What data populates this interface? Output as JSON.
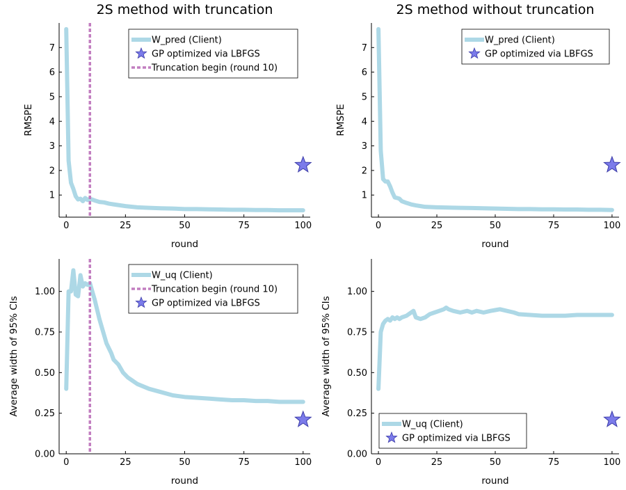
{
  "colors": {
    "client_line": "#add8e6",
    "gp_star_fill": "#7b7bea",
    "gp_star_stroke": "#3c3ca8",
    "truncation": "#c27ec0",
    "axis": "#000000"
  },
  "chart_data": [
    {
      "type": "line",
      "title": "2S method with truncation",
      "xlabel": "round",
      "ylabel": "RMSPE",
      "xlim": [
        -3,
        103
      ],
      "ylim": [
        0.1,
        8.0
      ],
      "xticks": [
        0,
        25,
        50,
        75,
        100
      ],
      "yticks": [
        1,
        2,
        3,
        4,
        5,
        6,
        7
      ],
      "ytick_labels": [
        "1",
        "2",
        "3",
        "4",
        "5",
        "6",
        "7"
      ],
      "grid": false,
      "legend_position": "top-right",
      "legend": [
        "W_pred (Client)",
        "GP optimized via LBFGS",
        "Truncation begin (round 10)"
      ],
      "series": [
        {
          "name": "W_pred (Client)",
          "x": [
            0,
            1,
            2,
            3,
            4,
            5,
            6,
            7,
            8,
            9,
            10,
            12,
            14,
            16,
            18,
            20,
            25,
            30,
            35,
            40,
            45,
            50,
            55,
            60,
            65,
            70,
            75,
            80,
            85,
            90,
            95,
            100
          ],
          "y": [
            7.75,
            2.4,
            1.5,
            1.25,
            0.95,
            0.82,
            0.85,
            0.75,
            0.88,
            0.8,
            0.85,
            0.78,
            0.72,
            0.7,
            0.65,
            0.62,
            0.55,
            0.5,
            0.48,
            0.46,
            0.45,
            0.43,
            0.43,
            0.42,
            0.41,
            0.4,
            0.4,
            0.39,
            0.39,
            0.38,
            0.38,
            0.38
          ]
        }
      ],
      "gp_point": {
        "name": "GP optimized via LBFGS",
        "x": 100,
        "y": 2.22
      },
      "truncation": {
        "name": "Truncation begin (round 10)",
        "x": 10
      }
    },
    {
      "type": "line",
      "title": "2S method without truncation",
      "xlabel": "round",
      "ylabel": "RMSPE",
      "xlim": [
        -3,
        103
      ],
      "ylim": [
        0.1,
        8.0
      ],
      "xticks": [
        0,
        25,
        50,
        75,
        100
      ],
      "yticks": [
        1,
        2,
        3,
        4,
        5,
        6,
        7
      ],
      "ytick_labels": [
        "1",
        "2",
        "3",
        "4",
        "5",
        "6",
        "7"
      ],
      "grid": false,
      "legend_position": "top-right",
      "legend": [
        "W_pred (Client)",
        "GP optimized via LBFGS"
      ],
      "series": [
        {
          "name": "W_pred (Client)",
          "x": [
            0,
            1,
            2,
            3,
            4,
            5,
            6,
            7,
            8,
            9,
            10,
            12,
            14,
            16,
            18,
            20,
            25,
            30,
            35,
            40,
            45,
            50,
            55,
            60,
            65,
            70,
            75,
            80,
            85,
            90,
            95,
            100
          ],
          "y": [
            7.75,
            2.8,
            1.65,
            1.55,
            1.55,
            1.35,
            1.1,
            0.9,
            0.88,
            0.85,
            0.75,
            0.68,
            0.62,
            0.58,
            0.55,
            0.52,
            0.5,
            0.49,
            0.48,
            0.47,
            0.46,
            0.45,
            0.44,
            0.43,
            0.43,
            0.42,
            0.42,
            0.41,
            0.41,
            0.4,
            0.4,
            0.39
          ]
        }
      ],
      "gp_point": {
        "name": "GP optimized via LBFGS",
        "x": 100,
        "y": 2.22
      }
    },
    {
      "type": "line",
      "title": "",
      "xlabel": "round",
      "ylabel": "Average width of 95% CIs",
      "xlim": [
        -3,
        103
      ],
      "ylim": [
        0.0,
        1.2
      ],
      "xticks": [
        0,
        25,
        50,
        75,
        100
      ],
      "yticks": [
        0.0,
        0.25,
        0.5,
        0.75,
        1.0
      ],
      "ytick_labels": [
        "0.00",
        "0.25",
        "0.50",
        "0.75",
        "1.00"
      ],
      "grid": false,
      "legend_position": "top-right",
      "legend": [
        "W_uq (Client)",
        "Truncation begin (round 10)",
        "GP optimized via LBFGS"
      ],
      "series": [
        {
          "name": "W_uq (Client)",
          "x": [
            0,
            0.5,
            1,
            2,
            3,
            4,
            5,
            6,
            7,
            8,
            9,
            10,
            11,
            12,
            13,
            14,
            15,
            16,
            17,
            18,
            19,
            20,
            22,
            24,
            26,
            28,
            30,
            35,
            40,
            45,
            50,
            55,
            60,
            65,
            70,
            75,
            80,
            85,
            90,
            95,
            100
          ],
          "y": [
            0.4,
            0.7,
            1.0,
            1.0,
            1.13,
            0.98,
            0.97,
            1.1,
            1.03,
            1.05,
            1.04,
            1.05,
            1.0,
            0.95,
            0.89,
            0.83,
            0.78,
            0.73,
            0.68,
            0.65,
            0.62,
            0.58,
            0.55,
            0.5,
            0.47,
            0.45,
            0.43,
            0.4,
            0.38,
            0.36,
            0.35,
            0.345,
            0.34,
            0.335,
            0.33,
            0.33,
            0.325,
            0.325,
            0.32,
            0.32,
            0.32
          ]
        }
      ],
      "gp_point": {
        "name": "GP optimized via LBFGS",
        "x": 100,
        "y": 0.21
      },
      "truncation": {
        "name": "Truncation begin (round 10)",
        "x": 10
      }
    },
    {
      "type": "line",
      "title": "",
      "xlabel": "round",
      "ylabel": "Average width of 95% CIs",
      "xlim": [
        -3,
        103
      ],
      "ylim": [
        0.0,
        1.2
      ],
      "xticks": [
        0,
        25,
        50,
        75,
        100
      ],
      "yticks": [
        0.0,
        0.25,
        0.5,
        0.75,
        1.0
      ],
      "ytick_labels": [
        "0.00",
        "0.25",
        "0.50",
        "0.75",
        "1.00"
      ],
      "grid": false,
      "legend_position": "bottom-left",
      "legend": [
        "W_uq (Client)",
        "GP optimized via LBFGS"
      ],
      "series": [
        {
          "name": "W_uq (Client)",
          "x": [
            0,
            1,
            2,
            3,
            4,
            5,
            6,
            7,
            8,
            9,
            10,
            12,
            14,
            15,
            16,
            18,
            20,
            22,
            24,
            26,
            28,
            29,
            30,
            32,
            35,
            38,
            40,
            42,
            45,
            48,
            50,
            52,
            55,
            58,
            60,
            65,
            70,
            75,
            80,
            85,
            90,
            95,
            100
          ],
          "y": [
            0.4,
            0.75,
            0.8,
            0.82,
            0.83,
            0.82,
            0.84,
            0.83,
            0.84,
            0.83,
            0.84,
            0.85,
            0.87,
            0.88,
            0.84,
            0.83,
            0.84,
            0.86,
            0.87,
            0.88,
            0.89,
            0.9,
            0.89,
            0.88,
            0.87,
            0.88,
            0.87,
            0.88,
            0.87,
            0.88,
            0.885,
            0.89,
            0.88,
            0.87,
            0.86,
            0.855,
            0.85,
            0.85,
            0.85,
            0.855,
            0.855,
            0.855,
            0.855
          ]
        }
      ],
      "gp_point": {
        "name": "GP optimized via LBFGS",
        "x": 100,
        "y": 0.21
      }
    }
  ]
}
